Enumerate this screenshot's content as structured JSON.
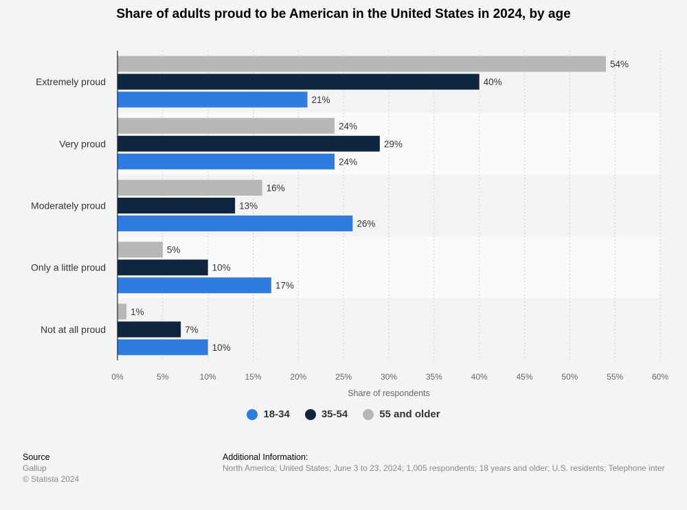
{
  "chart_data": {
    "type": "bar",
    "orientation": "horizontal",
    "title": "Share of adults proud to be American in the United States in 2024, by age",
    "categories": [
      "Extremely proud",
      "Very proud",
      "Moderately proud",
      "Only a little proud",
      "Not at all proud"
    ],
    "series": [
      {
        "name": "55 and older",
        "color": "#b7b7b7",
        "values": [
          54,
          24,
          16,
          5,
          1
        ]
      },
      {
        "name": "35-54",
        "color": "#102640",
        "values": [
          40,
          29,
          13,
          10,
          7
        ]
      },
      {
        "name": "18-34",
        "color": "#2f7ce0",
        "values": [
          21,
          24,
          26,
          17,
          10
        ]
      }
    ],
    "xlabel": "Share of respondents",
    "ylabel": "",
    "xlim": [
      0,
      60
    ],
    "xticks": [
      "0%",
      "5%",
      "10%",
      "15%",
      "20%",
      "25%",
      "30%",
      "35%",
      "40%",
      "45%",
      "50%",
      "55%",
      "60%"
    ],
    "grid": true,
    "value_suffix": "%"
  },
  "legend": [
    {
      "label": "18-34",
      "color": "#2f7ce0"
    },
    {
      "label": "35-54",
      "color": "#102640"
    },
    {
      "label": "55 and older",
      "color": "#b7b7b7"
    }
  ],
  "footer": {
    "source_heading": "Source",
    "source_name": "Gallup",
    "copyright": "© Statista 2024",
    "info_heading": "Additional Information:",
    "info_text": "North America; United States; June 3 to 23, 2024; 1,005 respondents; 18 years and older; U.S. residents; Telephone inter"
  }
}
